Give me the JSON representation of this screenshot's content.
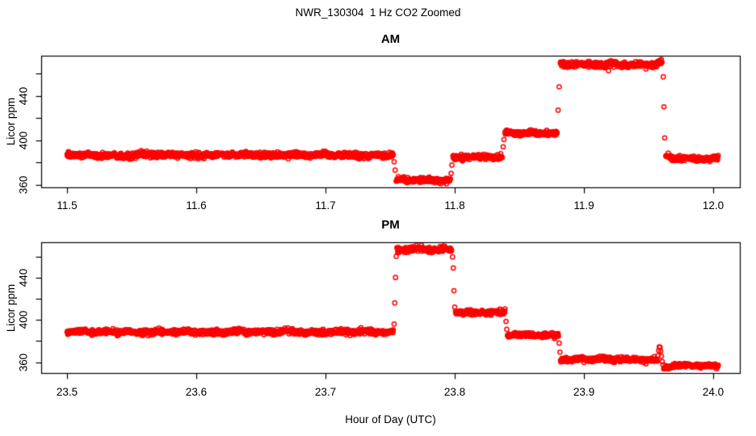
{
  "title": "NWR_130304  1 Hz CO2 Zoomed",
  "x_axis_label": "Hour of Day (UTC)",
  "marker": "open-circle",
  "point_color": "#ff0000",
  "axis_color": "#000000",
  "background_color": "#ffffff",
  "chart_data": [
    {
      "type": "scatter",
      "title": "AM",
      "ylabel": "Licor ppm",
      "units": "ppm CO2",
      "sample_interval_hours": 0.000278,
      "xlim": [
        11.48,
        12.02
      ],
      "ylim": [
        357,
        476
      ],
      "xtick_values": [
        11.5,
        11.6,
        11.7,
        11.8,
        11.9,
        12.0
      ],
      "xtick_labels": [
        "11.5",
        "11.6",
        "11.7",
        "11.8",
        "11.9",
        "12.0"
      ],
      "ytick_values": [
        360,
        380,
        400,
        420,
        440,
        460
      ],
      "ytick_labels": [
        "360",
        "",
        "400",
        "",
        "440",
        ""
      ],
      "segments": [
        {
          "t_start": 11.5,
          "t_end": 11.7525,
          "co2_ppm": 386.5,
          "noise_sd": 1.25
        },
        {
          "t_start": 11.7547,
          "t_end": 11.7967,
          "co2_ppm": 364.0,
          "noise_sd": 1.1
        },
        {
          "t_start": 11.7986,
          "t_end": 11.8369,
          "co2_ppm": 384.5,
          "noise_sd": 1.1
        },
        {
          "t_start": 11.8389,
          "t_end": 11.8794,
          "co2_ppm": 406.5,
          "noise_sd": 1.1
        },
        {
          "t_start": 11.8817,
          "t_end": 11.9606,
          "co2_ppm": 468.0,
          "noise_sd": 1.3,
          "end_bump_ppm": 2.5
        },
        {
          "t_start": 11.9633,
          "t_end": 12.004,
          "co2_ppm": 383.5,
          "noise_sd": 1.1,
          "start_offset_ppm": 3.0
        }
      ],
      "transition_points": [
        [
          11.7531,
          380.5
        ],
        [
          11.7539,
          373.0
        ],
        [
          11.7972,
          370.0
        ],
        [
          11.7978,
          377.5
        ],
        [
          11.8375,
          394.0
        ],
        [
          11.8381,
          400.5
        ],
        [
          11.88,
          427.0
        ],
        [
          11.8808,
          448.0
        ],
        [
          11.9614,
          457.0
        ],
        [
          11.9619,
          430.0
        ],
        [
          11.9625,
          402.0
        ]
      ],
      "outlier_points": [
        [
          11.919,
          462.5
        ],
        [
          11.948,
          464.0
        ]
      ]
    },
    {
      "type": "scatter",
      "title": "PM",
      "ylabel": "Licor ppm",
      "units": "ppm CO2",
      "sample_interval_hours": 0.000278,
      "xlim": [
        23.48,
        24.02
      ],
      "ylim": [
        352,
        473
      ],
      "xtick_values": [
        23.5,
        23.6,
        23.7,
        23.8,
        23.9,
        24.0
      ],
      "xtick_labels": [
        "23.5",
        "23.6",
        "23.7",
        "23.8",
        "23.9",
        "24.0"
      ],
      "ytick_values": [
        360,
        380,
        400,
        420,
        440,
        460
      ],
      "ytick_labels": [
        "360",
        "",
        "400",
        "",
        "440",
        ""
      ],
      "segments": [
        {
          "t_start": 23.5,
          "t_end": 23.7525,
          "co2_ppm": 388.5,
          "noise_sd": 1.25
        },
        {
          "t_start": 23.7553,
          "t_end": 23.7978,
          "co2_ppm": 466.5,
          "noise_sd": 1.3
        },
        {
          "t_start": 23.8006,
          "t_end": 23.8392,
          "co2_ppm": 407.0,
          "noise_sd": 1.1
        },
        {
          "t_start": 23.8408,
          "t_end": 23.8803,
          "co2_ppm": 385.5,
          "noise_sd": 1.1
        },
        {
          "t_start": 23.8819,
          "t_end": 23.9567,
          "co2_ppm": 362.5,
          "noise_sd": 1.1
        },
        {
          "t_start": 23.9617,
          "t_end": 24.004,
          "co2_ppm": 356.5,
          "noise_sd": 1.0,
          "start_offset_ppm": -1.5
        }
      ],
      "transition_points": [
        [
          23.7531,
          396.0
        ],
        [
          23.7536,
          416.0
        ],
        [
          23.7542,
          440.0
        ],
        [
          23.7547,
          460.0
        ],
        [
          23.7983,
          459.5
        ],
        [
          23.7989,
          449.0
        ],
        [
          23.7994,
          427.5
        ],
        [
          23.8,
          412.0
        ],
        [
          23.8397,
          398.5
        ],
        [
          23.8403,
          391.0
        ],
        [
          23.8808,
          378.0
        ],
        [
          23.8814,
          369.5
        ],
        [
          23.9572,
          366.0
        ],
        [
          23.9578,
          371.0
        ],
        [
          23.9583,
          374.5
        ],
        [
          23.9589,
          374.0
        ],
        [
          23.9594,
          370.5
        ],
        [
          23.96,
          365.5
        ],
        [
          23.9606,
          360.5
        ],
        [
          23.9611,
          357.5
        ]
      ],
      "outlier_points": []
    }
  ]
}
